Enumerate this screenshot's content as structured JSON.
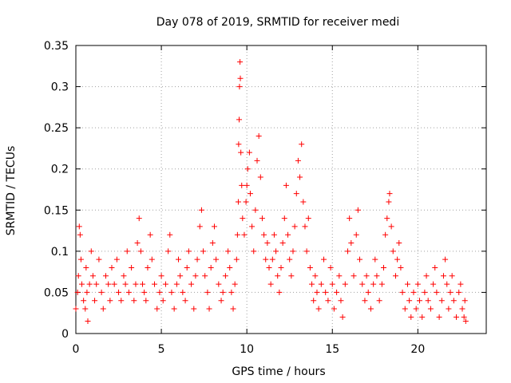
{
  "chart_data": {
    "type": "scatter",
    "title": "Day 078 of 2019, SRMTID for receiver medi",
    "xlabel": "GPS time / hours",
    "ylabel": "SRMTID / TECUs",
    "xlim": [
      0,
      24
    ],
    "ylim": [
      0,
      0.35
    ],
    "x_ticks": [
      0,
      5,
      10,
      15,
      20
    ],
    "x_tick_labels": [
      "0",
      "5",
      "10",
      "15",
      "20"
    ],
    "y_ticks": [
      0,
      0.05,
      0.1,
      0.15,
      0.2,
      0.25,
      0.3,
      0.35
    ],
    "y_tick_labels": [
      "0",
      "0.05",
      "0.1",
      "0.15",
      "0.2",
      "0.25",
      "0.3",
      "0.35"
    ],
    "grid": true,
    "marker": "plus",
    "series": [
      {
        "name": "SRMTID",
        "color": "#ff0000",
        "points": [
          [
            0.0,
            0.03
          ],
          [
            0.1,
            0.05
          ],
          [
            0.15,
            0.07
          ],
          [
            0.2,
            0.13
          ],
          [
            0.25,
            0.12
          ],
          [
            0.3,
            0.09
          ],
          [
            0.35,
            0.06
          ],
          [
            0.45,
            0.04
          ],
          [
            0.55,
            0.03
          ],
          [
            0.6,
            0.08
          ],
          [
            0.65,
            0.05
          ],
          [
            0.7,
            0.015
          ],
          [
            0.8,
            0.06
          ],
          [
            0.9,
            0.1
          ],
          [
            1.0,
            0.07
          ],
          [
            1.1,
            0.04
          ],
          [
            1.2,
            0.06
          ],
          [
            1.35,
            0.09
          ],
          [
            1.5,
            0.05
          ],
          [
            1.6,
            0.03
          ],
          [
            1.75,
            0.07
          ],
          [
            1.9,
            0.06
          ],
          [
            2.0,
            0.04
          ],
          [
            2.1,
            0.08
          ],
          [
            2.25,
            0.06
          ],
          [
            2.4,
            0.09
          ],
          [
            2.5,
            0.05
          ],
          [
            2.65,
            0.04
          ],
          [
            2.8,
            0.07
          ],
          [
            2.9,
            0.06
          ],
          [
            3.0,
            0.1
          ],
          [
            3.1,
            0.05
          ],
          [
            3.25,
            0.08
          ],
          [
            3.4,
            0.04
          ],
          [
            3.5,
            0.06
          ],
          [
            3.6,
            0.11
          ],
          [
            3.7,
            0.14
          ],
          [
            3.8,
            0.1
          ],
          [
            3.9,
            0.06
          ],
          [
            4.0,
            0.05
          ],
          [
            4.1,
            0.04
          ],
          [
            4.2,
            0.08
          ],
          [
            4.35,
            0.12
          ],
          [
            4.45,
            0.09
          ],
          [
            4.6,
            0.06
          ],
          [
            4.75,
            0.03
          ],
          [
            4.9,
            0.05
          ],
          [
            5.0,
            0.07
          ],
          [
            5.1,
            0.04
          ],
          [
            5.25,
            0.06
          ],
          [
            5.4,
            0.1
          ],
          [
            5.5,
            0.12
          ],
          [
            5.6,
            0.05
          ],
          [
            5.75,
            0.03
          ],
          [
            5.9,
            0.06
          ],
          [
            6.0,
            0.09
          ],
          [
            6.1,
            0.07
          ],
          [
            6.25,
            0.05
          ],
          [
            6.4,
            0.04
          ],
          [
            6.5,
            0.08
          ],
          [
            6.6,
            0.1
          ],
          [
            6.75,
            0.06
          ],
          [
            6.9,
            0.03
          ],
          [
            7.0,
            0.07
          ],
          [
            7.1,
            0.09
          ],
          [
            7.25,
            0.13
          ],
          [
            7.35,
            0.15
          ],
          [
            7.45,
            0.1
          ],
          [
            7.55,
            0.07
          ],
          [
            7.7,
            0.05
          ],
          [
            7.8,
            0.03
          ],
          [
            7.9,
            0.08
          ],
          [
            8.0,
            0.11
          ],
          [
            8.1,
            0.13
          ],
          [
            8.2,
            0.09
          ],
          [
            8.35,
            0.06
          ],
          [
            8.5,
            0.04
          ],
          [
            8.6,
            0.05
          ],
          [
            8.75,
            0.07
          ],
          [
            8.9,
            0.1
          ],
          [
            9.0,
            0.08
          ],
          [
            9.1,
            0.05
          ],
          [
            9.2,
            0.03
          ],
          [
            9.3,
            0.06
          ],
          [
            9.4,
            0.09
          ],
          [
            9.45,
            0.12
          ],
          [
            9.5,
            0.16
          ],
          [
            9.52,
            0.23
          ],
          [
            9.55,
            0.26
          ],
          [
            9.57,
            0.3
          ],
          [
            9.6,
            0.33
          ],
          [
            9.62,
            0.31
          ],
          [
            9.65,
            0.22
          ],
          [
            9.7,
            0.18
          ],
          [
            9.75,
            0.14
          ],
          [
            9.85,
            0.12
          ],
          [
            9.95,
            0.16
          ],
          [
            10.0,
            0.18
          ],
          [
            10.05,
            0.2
          ],
          [
            10.15,
            0.22
          ],
          [
            10.2,
            0.17
          ],
          [
            10.3,
            0.13
          ],
          [
            10.4,
            0.1
          ],
          [
            10.5,
            0.15
          ],
          [
            10.6,
            0.21
          ],
          [
            10.7,
            0.24
          ],
          [
            10.8,
            0.19
          ],
          [
            10.9,
            0.14
          ],
          [
            11.0,
            0.12
          ],
          [
            11.1,
            0.09
          ],
          [
            11.2,
            0.11
          ],
          [
            11.3,
            0.08
          ],
          [
            11.4,
            0.06
          ],
          [
            11.5,
            0.09
          ],
          [
            11.6,
            0.12
          ],
          [
            11.7,
            0.1
          ],
          [
            11.8,
            0.07
          ],
          [
            11.9,
            0.05
          ],
          [
            12.0,
            0.08
          ],
          [
            12.1,
            0.11
          ],
          [
            12.2,
            0.14
          ],
          [
            12.3,
            0.18
          ],
          [
            12.4,
            0.12
          ],
          [
            12.5,
            0.09
          ],
          [
            12.6,
            0.07
          ],
          [
            12.7,
            0.1
          ],
          [
            12.8,
            0.13
          ],
          [
            12.9,
            0.17
          ],
          [
            13.0,
            0.21
          ],
          [
            13.1,
            0.19
          ],
          [
            13.2,
            0.23
          ],
          [
            13.3,
            0.16
          ],
          [
            13.4,
            0.13
          ],
          [
            13.5,
            0.1
          ],
          [
            13.6,
            0.14
          ],
          [
            13.7,
            0.08
          ],
          [
            13.8,
            0.06
          ],
          [
            13.9,
            0.04
          ],
          [
            14.0,
            0.07
          ],
          [
            14.1,
            0.05
          ],
          [
            14.2,
            0.03
          ],
          [
            14.35,
            0.06
          ],
          [
            14.5,
            0.09
          ],
          [
            14.6,
            0.05
          ],
          [
            14.75,
            0.04
          ],
          [
            14.9,
            0.08
          ],
          [
            15.0,
            0.06
          ],
          [
            15.1,
            0.03
          ],
          [
            15.25,
            0.05
          ],
          [
            15.4,
            0.07
          ],
          [
            15.5,
            0.04
          ],
          [
            15.6,
            0.02
          ],
          [
            15.75,
            0.06
          ],
          [
            15.9,
            0.1
          ],
          [
            16.0,
            0.14
          ],
          [
            16.1,
            0.11
          ],
          [
            16.25,
            0.07
          ],
          [
            16.4,
            0.12
          ],
          [
            16.5,
            0.15
          ],
          [
            16.6,
            0.09
          ],
          [
            16.75,
            0.06
          ],
          [
            16.9,
            0.04
          ],
          [
            17.0,
            0.07
          ],
          [
            17.1,
            0.05
          ],
          [
            17.25,
            0.03
          ],
          [
            17.4,
            0.06
          ],
          [
            17.5,
            0.09
          ],
          [
            17.6,
            0.07
          ],
          [
            17.75,
            0.04
          ],
          [
            17.9,
            0.06
          ],
          [
            18.0,
            0.08
          ],
          [
            18.1,
            0.12
          ],
          [
            18.2,
            0.14
          ],
          [
            18.3,
            0.16
          ],
          [
            18.35,
            0.17
          ],
          [
            18.45,
            0.13
          ],
          [
            18.55,
            0.1
          ],
          [
            18.7,
            0.07
          ],
          [
            18.8,
            0.09
          ],
          [
            18.9,
            0.11
          ],
          [
            19.0,
            0.08
          ],
          [
            19.1,
            0.05
          ],
          [
            19.25,
            0.03
          ],
          [
            19.4,
            0.06
          ],
          [
            19.5,
            0.04
          ],
          [
            19.6,
            0.02
          ],
          [
            19.75,
            0.05
          ],
          [
            19.9,
            0.03
          ],
          [
            20.0,
            0.06
          ],
          [
            20.1,
            0.04
          ],
          [
            20.25,
            0.02
          ],
          [
            20.4,
            0.05
          ],
          [
            20.5,
            0.07
          ],
          [
            20.6,
            0.04
          ],
          [
            20.75,
            0.03
          ],
          [
            20.9,
            0.06
          ],
          [
            21.0,
            0.08
          ],
          [
            21.1,
            0.05
          ],
          [
            21.25,
            0.02
          ],
          [
            21.4,
            0.04
          ],
          [
            21.5,
            0.07
          ],
          [
            21.6,
            0.09
          ],
          [
            21.7,
            0.06
          ],
          [
            21.8,
            0.03
          ],
          [
            21.9,
            0.05
          ],
          [
            22.0,
            0.07
          ],
          [
            22.1,
            0.04
          ],
          [
            22.25,
            0.02
          ],
          [
            22.4,
            0.05
          ],
          [
            22.5,
            0.06
          ],
          [
            22.6,
            0.03
          ],
          [
            22.7,
            0.02
          ],
          [
            22.75,
            0.04
          ],
          [
            22.8,
            0.015
          ]
        ]
      }
    ]
  }
}
